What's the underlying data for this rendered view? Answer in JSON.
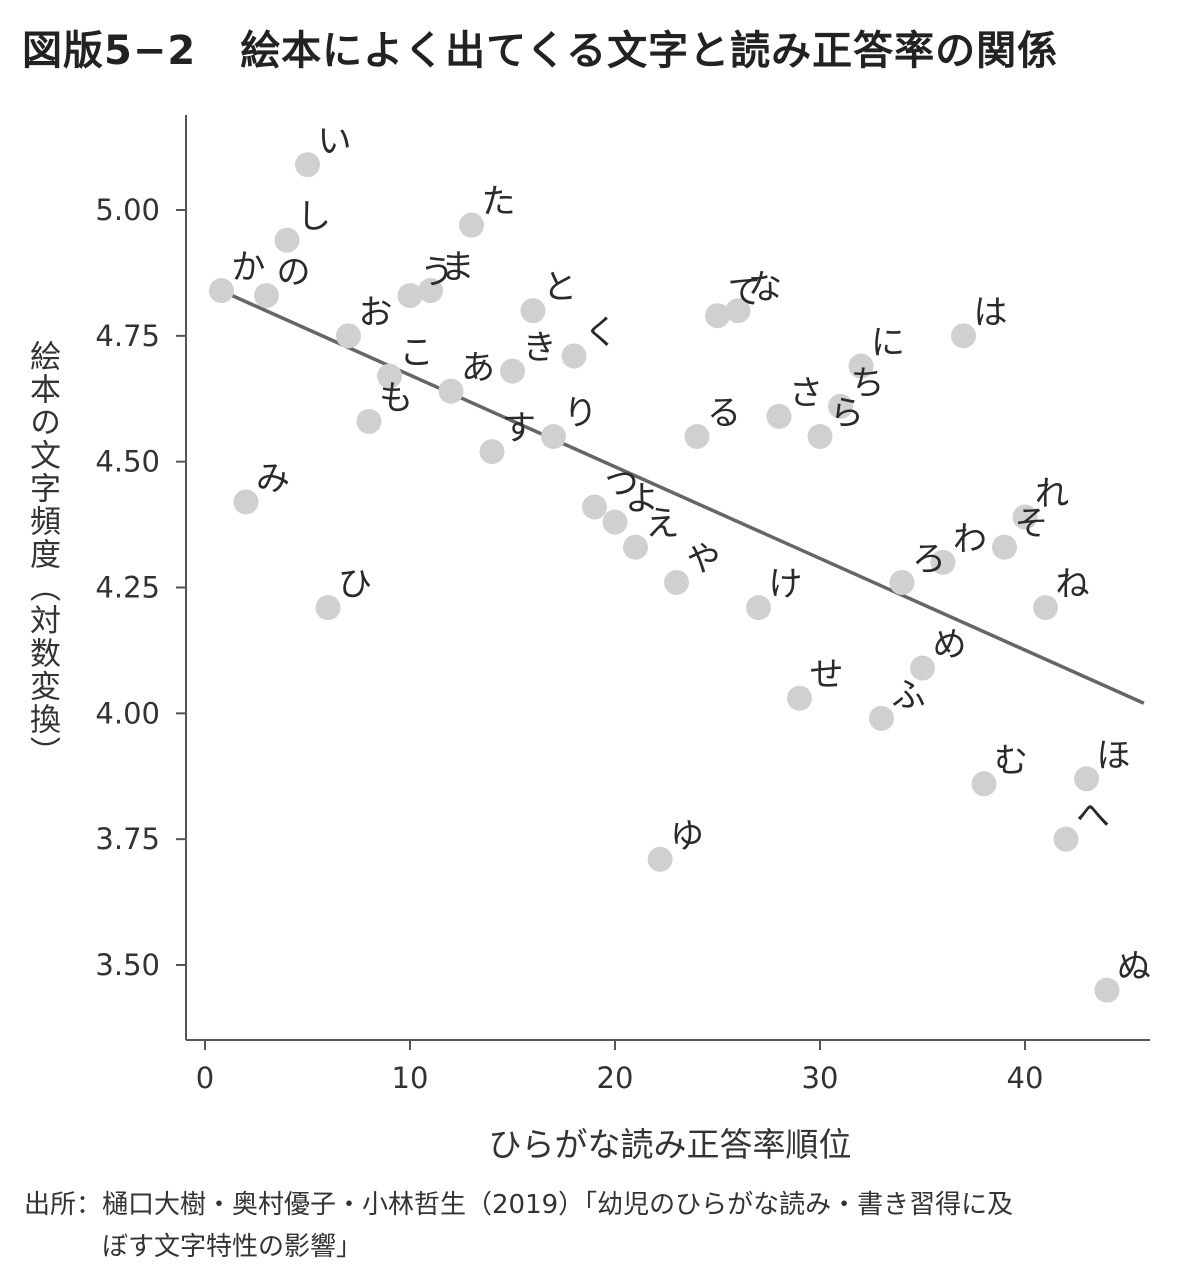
{
  "title": {
    "figure_no": "図版5−2",
    "text": "絵本によく出てくる文字と読み正答率の関係"
  },
  "source": {
    "line1": "出所：樋口大樹・奥村優子・小林哲生（2019）「幼児のひらがな読み・書き習得に及",
    "line2": "ぼす文字特性の影響」"
  },
  "chart_data": {
    "type": "scatter",
    "xlabel": "ひらがな読み正答率順位",
    "ylabel": "絵本の文字頻度（対数変換）",
    "xlim": [
      -0.5,
      46
    ],
    "ylim": [
      3.35,
      5.2
    ],
    "xticks": [
      0,
      10,
      20,
      30,
      40
    ],
    "yticks": [
      3.5,
      3.75,
      4.0,
      4.25,
      4.5,
      4.75,
      5.0
    ],
    "ytick_labels": [
      "3.50",
      "3.75",
      "4.00",
      "4.25",
      "4.50",
      "4.75",
      "5.00"
    ],
    "point_color": "#d0d0d0",
    "line_color": "#666666",
    "trend_line": {
      "x": [
        0.5,
        45.8
      ],
      "y": [
        4.845,
        4.02
      ]
    },
    "points": [
      {
        "label": "か",
        "x": 0.8,
        "y": 4.84
      },
      {
        "label": "み",
        "x": 2,
        "y": 4.42
      },
      {
        "label": "の",
        "x": 3,
        "y": 4.83
      },
      {
        "label": "し",
        "x": 4,
        "y": 4.94
      },
      {
        "label": "い",
        "x": 5,
        "y": 5.09
      },
      {
        "label": "ひ",
        "x": 6,
        "y": 4.21
      },
      {
        "label": "お",
        "x": 7,
        "y": 4.75
      },
      {
        "label": "も",
        "x": 8,
        "y": 4.58
      },
      {
        "label": "こ",
        "x": 9,
        "y": 4.67
      },
      {
        "label": "う",
        "x": 10,
        "y": 4.83
      },
      {
        "label": "ま",
        "x": 11,
        "y": 4.84
      },
      {
        "label": "あ",
        "x": 12,
        "y": 4.64
      },
      {
        "label": "た",
        "x": 13,
        "y": 4.97
      },
      {
        "label": "す",
        "x": 14,
        "y": 4.52
      },
      {
        "label": "き",
        "x": 15,
        "y": 4.68
      },
      {
        "label": "と",
        "x": 16,
        "y": 4.8
      },
      {
        "label": "り",
        "x": 17,
        "y": 4.55
      },
      {
        "label": "く",
        "x": 18,
        "y": 4.71
      },
      {
        "label": "つ",
        "x": 19,
        "y": 4.41
      },
      {
        "label": "よ",
        "x": 20,
        "y": 4.38
      },
      {
        "label": "え",
        "x": 21,
        "y": 4.33
      },
      {
        "label": "ゆ",
        "x": 22.2,
        "y": 3.71
      },
      {
        "label": "や",
        "x": 23,
        "y": 4.26
      },
      {
        "label": "る",
        "x": 24,
        "y": 4.55
      },
      {
        "label": "て",
        "x": 25,
        "y": 4.79
      },
      {
        "label": "な",
        "x": 26,
        "y": 4.8
      },
      {
        "label": "け",
        "x": 27,
        "y": 4.21
      },
      {
        "label": "さ",
        "x": 28,
        "y": 4.59
      },
      {
        "label": "せ",
        "x": 29,
        "y": 4.03
      },
      {
        "label": "ら",
        "x": 30,
        "y": 4.55
      },
      {
        "label": "ち",
        "x": 31,
        "y": 4.61
      },
      {
        "label": "に",
        "x": 32,
        "y": 4.69
      },
      {
        "label": "ふ",
        "x": 33,
        "y": 3.99
      },
      {
        "label": "ろ",
        "x": 34,
        "y": 4.26
      },
      {
        "label": "め",
        "x": 35,
        "y": 4.09
      },
      {
        "label": "わ",
        "x": 36,
        "y": 4.3
      },
      {
        "label": "は",
        "x": 37,
        "y": 4.75
      },
      {
        "label": "む",
        "x": 38,
        "y": 3.86
      },
      {
        "label": "そ",
        "x": 39,
        "y": 4.33
      },
      {
        "label": "れ",
        "x": 40,
        "y": 4.39
      },
      {
        "label": "ね",
        "x": 41,
        "y": 4.21
      },
      {
        "label": "へ",
        "x": 42,
        "y": 3.75
      },
      {
        "label": "ほ",
        "x": 43,
        "y": 3.87
      },
      {
        "label": "ぬ",
        "x": 44,
        "y": 3.45
      }
    ]
  }
}
